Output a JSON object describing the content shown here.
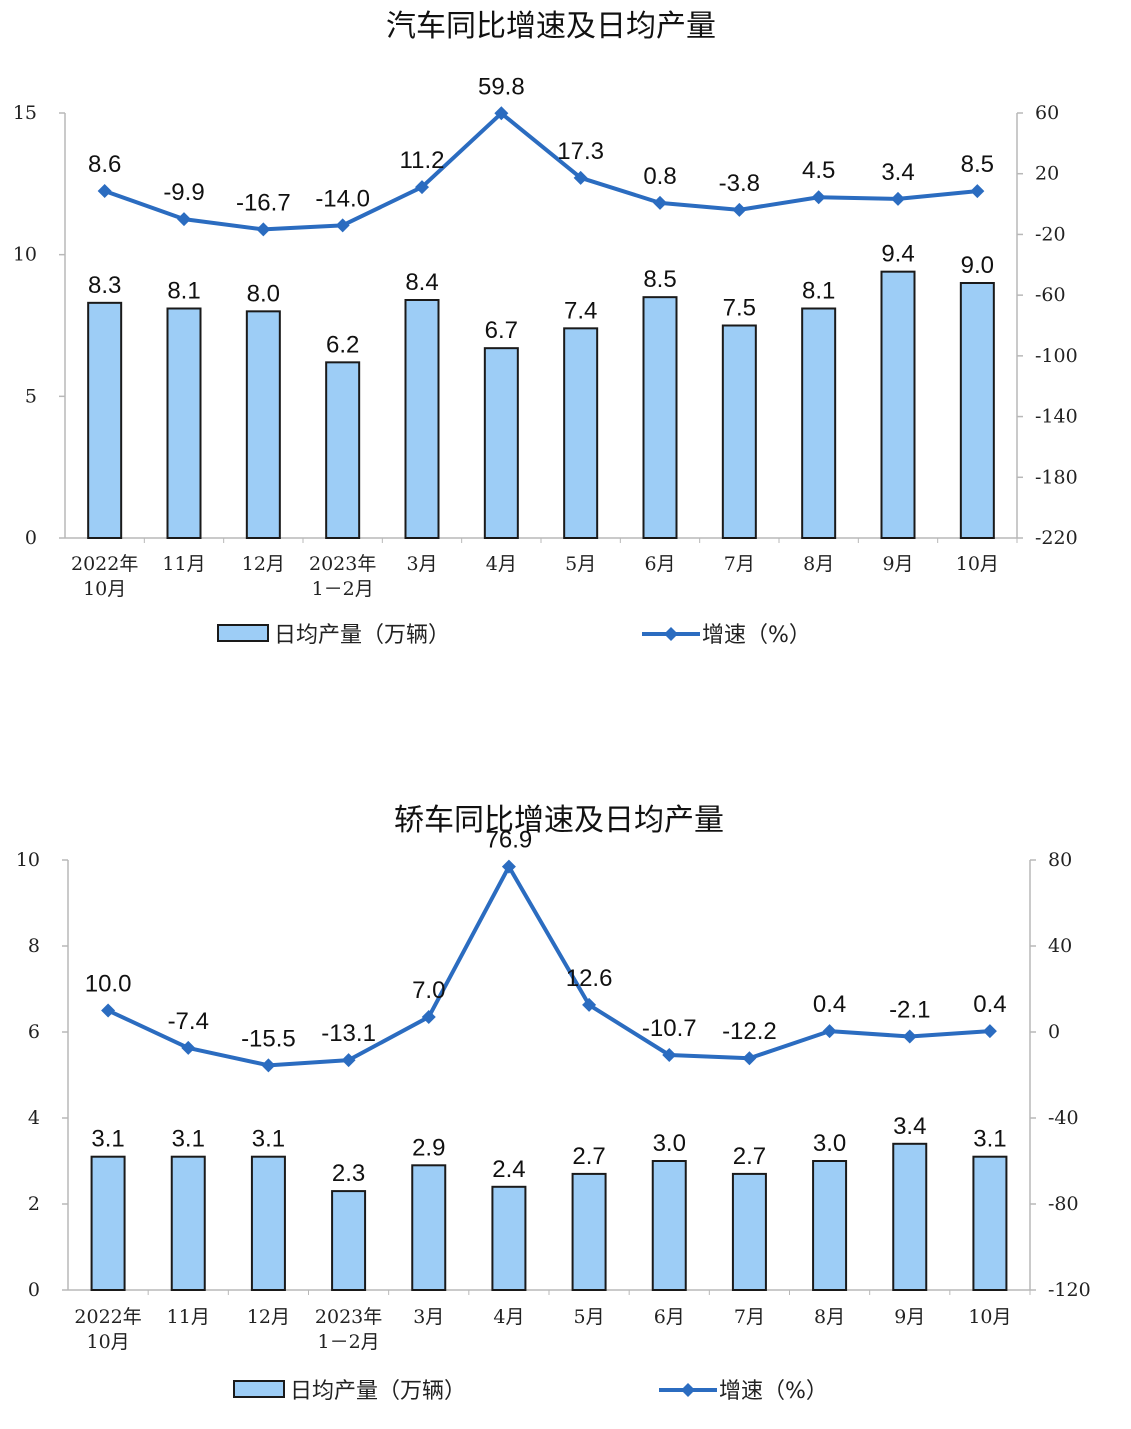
{
  "chart_data": [
    {
      "type": "bar+line",
      "title": "汽车同比增速及日均产量",
      "categories": [
        [
          "2022年",
          "10月"
        ],
        [
          "11月"
        ],
        [
          "12月"
        ],
        [
          "2023年",
          "1－2月"
        ],
        [
          "3月"
        ],
        [
          "4月"
        ],
        [
          "5月"
        ],
        [
          "6月"
        ],
        [
          "7月"
        ],
        [
          "8月"
        ],
        [
          "9月"
        ],
        [
          "10月"
        ]
      ],
      "series": [
        {
          "name": "日均产量（万辆）",
          "type": "bar",
          "axis": "left",
          "values": [
            8.3,
            8.1,
            8.0,
            6.2,
            8.4,
            6.7,
            7.4,
            8.5,
            7.5,
            8.1,
            9.4,
            9.0
          ],
          "labels": [
            "8.3",
            "8.1",
            "8.0",
            "6.2",
            "8.4",
            "6.7",
            "7.4",
            "8.5",
            "7.5",
            "8.1",
            "9.4",
            "9.0"
          ]
        },
        {
          "name": "增速（%）",
          "type": "line",
          "axis": "right",
          "values": [
            8.6,
            -9.9,
            -16.7,
            -14.0,
            11.2,
            59.8,
            17.3,
            0.8,
            -3.8,
            4.5,
            3.4,
            8.5
          ],
          "labels": [
            "8.6",
            "-9.9",
            "-16.7",
            "-14.0",
            "11.2",
            "59.8",
            "17.3",
            "0.8",
            "-3.8",
            "4.5",
            "3.4",
            "8.5"
          ]
        }
      ],
      "y_left": {
        "range": [
          0,
          15
        ],
        "ticks": [
          "0",
          "5",
          "10",
          "15"
        ],
        "tick_values": [
          0,
          5,
          10,
          15
        ]
      },
      "y_right": {
        "range": [
          -220,
          60
        ],
        "ticks": [
          "-220",
          "-180",
          "-140",
          "-100",
          "-60",
          "-20",
          "20",
          "60"
        ],
        "tick_values": [
          -220,
          -180,
          -140,
          -100,
          -60,
          -20,
          20,
          60
        ]
      },
      "grid": false,
      "legend": "bottom"
    },
    {
      "type": "bar+line",
      "title": "轿车同比增速及日均产量",
      "categories": [
        [
          "2022年",
          "10月"
        ],
        [
          "11月"
        ],
        [
          "12月"
        ],
        [
          "2023年",
          "1－2月"
        ],
        [
          "3月"
        ],
        [
          "4月"
        ],
        [
          "5月"
        ],
        [
          "6月"
        ],
        [
          "7月"
        ],
        [
          "8月"
        ],
        [
          "9月"
        ],
        [
          "10月"
        ]
      ],
      "series": [
        {
          "name": "日均产量（万辆）",
          "type": "bar",
          "axis": "left",
          "values": [
            3.1,
            3.1,
            3.1,
            2.3,
            2.9,
            2.4,
            2.7,
            3.0,
            2.7,
            3.0,
            3.4,
            3.1
          ],
          "labels": [
            "3.1",
            "3.1",
            "3.1",
            "2.3",
            "2.9",
            "2.4",
            "2.7",
            "3.0",
            "2.7",
            "3.0",
            "3.4",
            "3.1"
          ]
        },
        {
          "name": "增速（%）",
          "type": "line",
          "axis": "right",
          "values": [
            10.0,
            -7.4,
            -15.5,
            -13.1,
            7.0,
            76.9,
            12.6,
            -10.7,
            -12.2,
            0.4,
            -2.1,
            0.4
          ],
          "labels": [
            "10.0",
            "-7.4",
            "-15.5",
            "-13.1",
            "7.0",
            "76.9",
            "12.6",
            "-10.7",
            "-12.2",
            "0.4",
            "-2.1",
            "0.4"
          ]
        }
      ],
      "y_left": {
        "range": [
          0,
          10
        ],
        "ticks": [
          "0",
          "2",
          "4",
          "6",
          "8",
          "10"
        ],
        "tick_values": [
          0,
          2,
          4,
          6,
          8,
          10
        ]
      },
      "y_right": {
        "range": [
          -120,
          80
        ],
        "ticks": [
          "-120",
          "-80",
          "-40",
          "0",
          "40",
          "80"
        ],
        "tick_values": [
          -120,
          -80,
          -40,
          0,
          40,
          80
        ]
      },
      "grid": false,
      "legend": "bottom"
    }
  ],
  "colors": {
    "bar_fill": "#9dcdf6",
    "bar_stroke": "#1a1a1a",
    "line": "#2b6cc0",
    "axis": "#b8b8b8"
  }
}
